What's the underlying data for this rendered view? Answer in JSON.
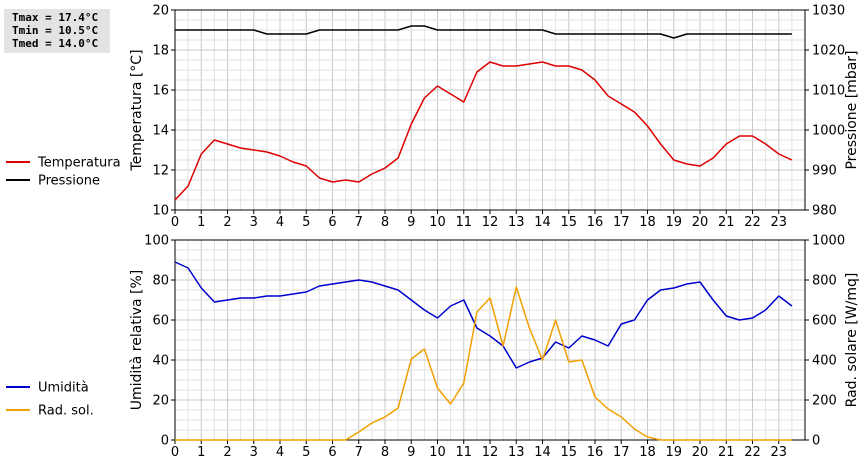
{
  "stats": {
    "tmax": "Tmax = 17.4°C",
    "tmin": "Tmin = 10.5°C",
    "tmed": "Tmed = 14.0°C"
  },
  "chart_data": [
    {
      "type": "line",
      "ylabel": "Temperatura [°C]",
      "y2label": "Pressione [mbar]",
      "ylim": [
        10,
        20
      ],
      "y2lim": [
        980,
        1030
      ],
      "yticks": [
        "10",
        "12",
        "14",
        "16",
        "18",
        "20"
      ],
      "y2ticks": [
        "980",
        "990",
        "1000",
        "1010",
        "1020",
        "1030"
      ],
      "xlim": [
        0,
        24
      ],
      "xticks": [
        "0",
        "1",
        "2",
        "3",
        "4",
        "5",
        "6",
        "7",
        "8",
        "9",
        "10",
        "11",
        "12",
        "13",
        "14",
        "15",
        "16",
        "17",
        "18",
        "19",
        "20",
        "21",
        "22",
        "23"
      ],
      "grid": true,
      "legend_position": "left",
      "series": [
        {
          "name": "Temperatura",
          "axis": "left",
          "color": "#dd0000",
          "x": [
            0,
            0.5,
            1,
            1.5,
            2,
            2.5,
            3,
            3.5,
            4,
            4.5,
            5,
            5.5,
            6,
            6.5,
            7,
            7.5,
            8,
            8.5,
            9,
            9.5,
            10,
            10.5,
            11,
            11.5,
            12,
            12.5,
            13,
            13.5,
            14,
            14.5,
            15,
            15.5,
            16,
            16.5,
            17,
            17.5,
            18,
            18.5,
            19,
            19.5,
            20,
            20.5,
            21,
            21.5,
            22,
            22.5,
            23,
            23.5
          ],
          "values": [
            10.5,
            11.2,
            12.8,
            13.5,
            13.3,
            13.1,
            13.0,
            12.9,
            12.7,
            12.4,
            12.2,
            11.6,
            11.4,
            11.5,
            11.4,
            11.8,
            12.1,
            12.6,
            14.3,
            15.6,
            16.2,
            15.8,
            15.4,
            16.9,
            17.4,
            17.2,
            17.2,
            17.3,
            17.4,
            17.2,
            17.2,
            17.0,
            16.5,
            15.7,
            15.3,
            14.9,
            14.2,
            13.3,
            12.5,
            12.3,
            12.2,
            12.6,
            13.3,
            13.7,
            13.7,
            13.3,
            12.8,
            12.5
          ]
        },
        {
          "name": "Pressione",
          "axis": "right",
          "color": "#000000",
          "x": [
            0,
            3,
            3.5,
            5,
            5.5,
            8.5,
            9,
            9.5,
            10,
            14,
            14.5,
            18.5,
            19,
            19.5,
            23.5
          ],
          "values": [
            1025,
            1025,
            1024,
            1024,
            1025,
            1025,
            1026,
            1026,
            1025,
            1025,
            1024,
            1024,
            1023,
            1024,
            1024
          ]
        }
      ]
    },
    {
      "type": "line",
      "ylabel": "Umidità relativa [%]",
      "y2label": "Rad. solare [W/mq]",
      "ylim": [
        0,
        100
      ],
      "y2lim": [
        0,
        1000
      ],
      "yticks": [
        "0",
        "20",
        "40",
        "60",
        "80",
        "100"
      ],
      "y2ticks": [
        "0",
        "200",
        "400",
        "600",
        "800",
        "1000"
      ],
      "xlim": [
        0,
        24
      ],
      "xticks": [
        "0",
        "1",
        "2",
        "3",
        "4",
        "5",
        "6",
        "7",
        "8",
        "9",
        "10",
        "11",
        "12",
        "13",
        "14",
        "15",
        "16",
        "17",
        "18",
        "19",
        "20",
        "21",
        "22",
        "23"
      ],
      "grid": true,
      "legend_position": "left",
      "series": [
        {
          "name": "Umidità",
          "axis": "left",
          "color": "#0000cc",
          "x": [
            0,
            0.5,
            1,
            1.5,
            2,
            2.5,
            3,
            3.5,
            4,
            4.5,
            5,
            5.5,
            6,
            6.5,
            7,
            7.5,
            8,
            8.5,
            9,
            9.5,
            10,
            10.5,
            11,
            11.5,
            12,
            12.5,
            13,
            13.5,
            14,
            14.5,
            15,
            15.5,
            16,
            16.5,
            17,
            17.5,
            18,
            18.5,
            19,
            19.5,
            20,
            20.5,
            21,
            21.5,
            22,
            22.5,
            23,
            23.5
          ],
          "values": [
            89,
            86,
            76,
            69,
            70,
            71,
            71,
            72,
            72,
            73,
            74,
            77,
            78,
            79,
            80,
            79,
            77,
            75,
            70,
            65,
            61,
            67,
            70,
            56,
            52,
            47,
            36,
            39,
            41,
            49,
            46,
            52,
            50,
            47,
            58,
            60,
            70,
            75,
            76,
            78,
            79,
            70,
            62,
            60,
            61,
            65,
            72,
            67
          ]
        },
        {
          "name": "Rad. sol.",
          "axis": "right",
          "color": "#f0a000",
          "x": [
            0,
            6.5,
            7,
            7.5,
            8,
            8.5,
            9,
            9.5,
            10,
            10.5,
            11,
            11.5,
            12,
            12.5,
            13,
            13.5,
            14,
            14.5,
            15,
            15.5,
            16,
            16.5,
            17,
            17.5,
            18,
            18.5,
            19,
            23.5
          ],
          "values": [
            0,
            0,
            40,
            85,
            115,
            160,
            405,
            455,
            260,
            180,
            285,
            640,
            710,
            470,
            765,
            560,
            400,
            600,
            390,
            400,
            215,
            155,
            115,
            55,
            15,
            0,
            0,
            0
          ]
        }
      ]
    }
  ]
}
